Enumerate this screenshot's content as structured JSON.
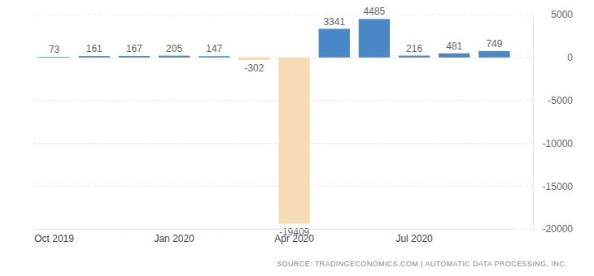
{
  "chart_data": {
    "type": "bar",
    "categories": [
      "Oct 2019",
      null,
      null,
      "Jan 2020",
      null,
      null,
      "Apr 2020",
      null,
      null,
      "Jul 2020",
      null,
      null
    ],
    "values": [
      73,
      161,
      167,
      205,
      147,
      -302,
      -19409,
      3341,
      4485,
      216,
      481,
      749
    ],
    "colors": [
      "#4a87c6",
      "#4a87c6",
      "#4a87c6",
      "#4a87c6",
      "#4a87c6",
      "#f5dcb4",
      "#f5dcb4",
      "#4a87c6",
      "#4a87c6",
      "#4a87c6",
      "#4a87c6",
      "#4a87c6"
    ],
    "ylim": [
      -20000,
      5000
    ],
    "yticks": [
      -20000,
      -15000,
      -10000,
      -5000,
      0,
      5000
    ],
    "grid": true,
    "data_labels": true,
    "source": "SOURCE: TRADINGECONOMICS.COM | AUTOMATIC DATA PROCESSING, INC."
  }
}
